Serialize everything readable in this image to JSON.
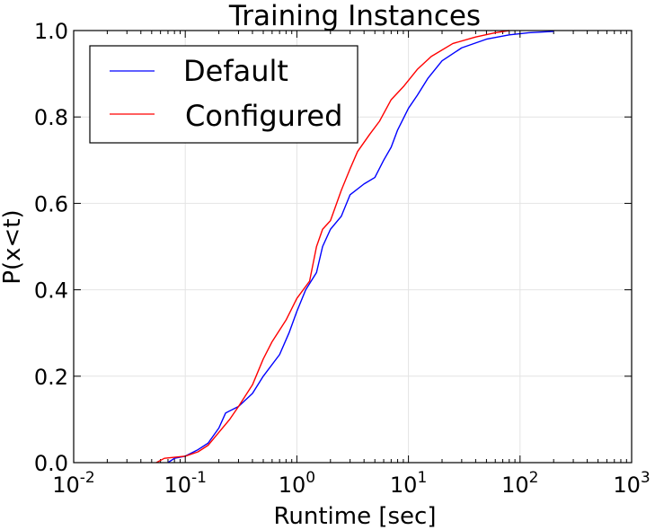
{
  "chart_data": {
    "type": "line",
    "title": "Training Instances",
    "xlabel": "Runtime [sec]",
    "ylabel": "P(x<t)",
    "xscale": "log",
    "xlim": [
      0.01,
      1000
    ],
    "ylim": [
      0.0,
      1.0
    ],
    "x_tick_labels": [
      {
        "base": "10",
        "exp": "-2"
      },
      {
        "base": "10",
        "exp": "-1"
      },
      {
        "base": "10",
        "exp": "0"
      },
      {
        "base": "10",
        "exp": "1"
      },
      {
        "base": "10",
        "exp": "2"
      },
      {
        "base": "10",
        "exp": "3"
      }
    ],
    "y_tick_labels": [
      "0.0",
      "0.2",
      "0.4",
      "0.6",
      "0.8",
      "1.0"
    ],
    "grid": true,
    "legend_position": "top-left",
    "series": [
      {
        "name": "Default",
        "color": "#0000ff",
        "points": [
          [
            0.07,
            0.0
          ],
          [
            0.08,
            0.01
          ],
          [
            0.1,
            0.015
          ],
          [
            0.13,
            0.03
          ],
          [
            0.16,
            0.045
          ],
          [
            0.2,
            0.08
          ],
          [
            0.23,
            0.115
          ],
          [
            0.3,
            0.13
          ],
          [
            0.4,
            0.16
          ],
          [
            0.5,
            0.2
          ],
          [
            0.7,
            0.25
          ],
          [
            0.85,
            0.3
          ],
          [
            1.0,
            0.35
          ],
          [
            1.2,
            0.4
          ],
          [
            1.5,
            0.44
          ],
          [
            1.7,
            0.5
          ],
          [
            2.0,
            0.54
          ],
          [
            2.5,
            0.57
          ],
          [
            3.0,
            0.62
          ],
          [
            4.0,
            0.645
          ],
          [
            5.0,
            0.66
          ],
          [
            6.0,
            0.7
          ],
          [
            7.0,
            0.73
          ],
          [
            8.0,
            0.77
          ],
          [
            10.0,
            0.82
          ],
          [
            12.0,
            0.85
          ],
          [
            15.0,
            0.89
          ],
          [
            20.0,
            0.93
          ],
          [
            30.0,
            0.96
          ],
          [
            50.0,
            0.98
          ],
          [
            80.0,
            0.99
          ],
          [
            120.0,
            0.995
          ],
          [
            200.0,
            0.998
          ]
        ]
      },
      {
        "name": "Configured",
        "color": "#ff0000",
        "points": [
          [
            0.055,
            0.0
          ],
          [
            0.065,
            0.01
          ],
          [
            0.1,
            0.015
          ],
          [
            0.13,
            0.025
          ],
          [
            0.16,
            0.04
          ],
          [
            0.2,
            0.07
          ],
          [
            0.25,
            0.1
          ],
          [
            0.3,
            0.13
          ],
          [
            0.4,
            0.18
          ],
          [
            0.5,
            0.24
          ],
          [
            0.6,
            0.28
          ],
          [
            0.8,
            0.33
          ],
          [
            1.0,
            0.38
          ],
          [
            1.3,
            0.42
          ],
          [
            1.5,
            0.5
          ],
          [
            1.7,
            0.54
          ],
          [
            2.0,
            0.56
          ],
          [
            2.5,
            0.63
          ],
          [
            3.0,
            0.68
          ],
          [
            3.5,
            0.72
          ],
          [
            4.5,
            0.76
          ],
          [
            5.5,
            0.79
          ],
          [
            7.0,
            0.84
          ],
          [
            9.0,
            0.87
          ],
          [
            12.0,
            0.91
          ],
          [
            16.0,
            0.94
          ],
          [
            25.0,
            0.97
          ],
          [
            40.0,
            0.985
          ],
          [
            60.0,
            0.995
          ],
          [
            80.0,
            1.0
          ]
        ]
      }
    ]
  }
}
